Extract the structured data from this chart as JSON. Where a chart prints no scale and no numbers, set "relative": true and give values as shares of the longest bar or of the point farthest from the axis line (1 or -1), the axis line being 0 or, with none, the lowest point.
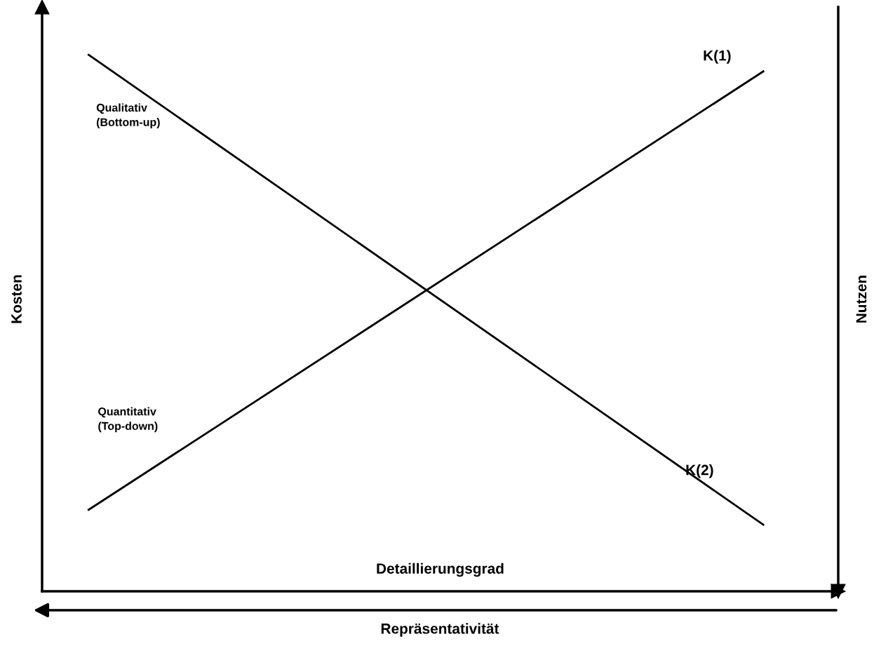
{
  "chart_data": {
    "type": "line",
    "relative": true,
    "categories": [
      null,
      null
    ],
    "series": [
      {
        "name": "K(1)",
        "color": "#000000",
        "values": [
          0.152,
          0.969
        ]
      },
      {
        "name": "K(2)",
        "color": "#000000",
        "values": [
          1,
          0.124
        ]
      }
    ],
    "xlabel": "Detaillierungsgrad",
    "ylabel": "Kosten",
    "y2label": "Nutzen",
    "annotations": [
      {
        "text": "Qualitativ\n(Bottom-up)"
      },
      {
        "text": "Quantitativ\n(Top-down)"
      },
      {
        "text": "Repräsentativität"
      }
    ],
    "tick_labels": false,
    "legend": false,
    "marker": "none",
    "line_style": "solid"
  }
}
